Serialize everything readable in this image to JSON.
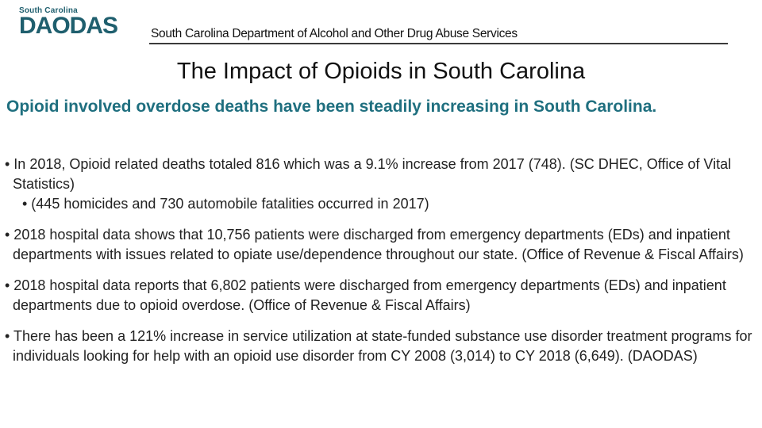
{
  "header": {
    "logo_top": "South Carolina",
    "logo_main": "DAODAS",
    "department": "South Carolina Department of Alcohol and Other Drug Abuse Services"
  },
  "title": "The Impact of Opioids in South Carolina",
  "subtitle": "Opioid involved overdose deaths have been steadily increasing in South Carolina.",
  "bullets": [
    "• In 2018, Opioid related deaths totaled 816 which was a 9.1%  increase from 2017 (748). (SC DHEC, Office of Vital Statistics)",
    "• (445 homicides and 730 automobile fatalities occurred in 2017)",
    "• 2018 hospital data shows that 10,756 patients were discharged from emergency departments (EDs) and inpatient departments with issues related to opiate use/dependence throughout our state. (Office of Revenue & Fiscal Affairs)",
    "• 2018 hospital data reports that 6,802 patients were discharged from emergency departments (EDs) and inpatient departments due to opioid overdose. (Office of Revenue & Fiscal Affairs)",
    "• There has been a 121% increase in service utilization at state-funded substance use disorder treatment programs for individuals looking for help with an opioid use disorder from CY 2008 (3,014) to CY 2018 (6,649). (DAODAS)"
  ],
  "colors": {
    "brand": "#1f5f6e",
    "subtitle": "#1f6f7f"
  }
}
